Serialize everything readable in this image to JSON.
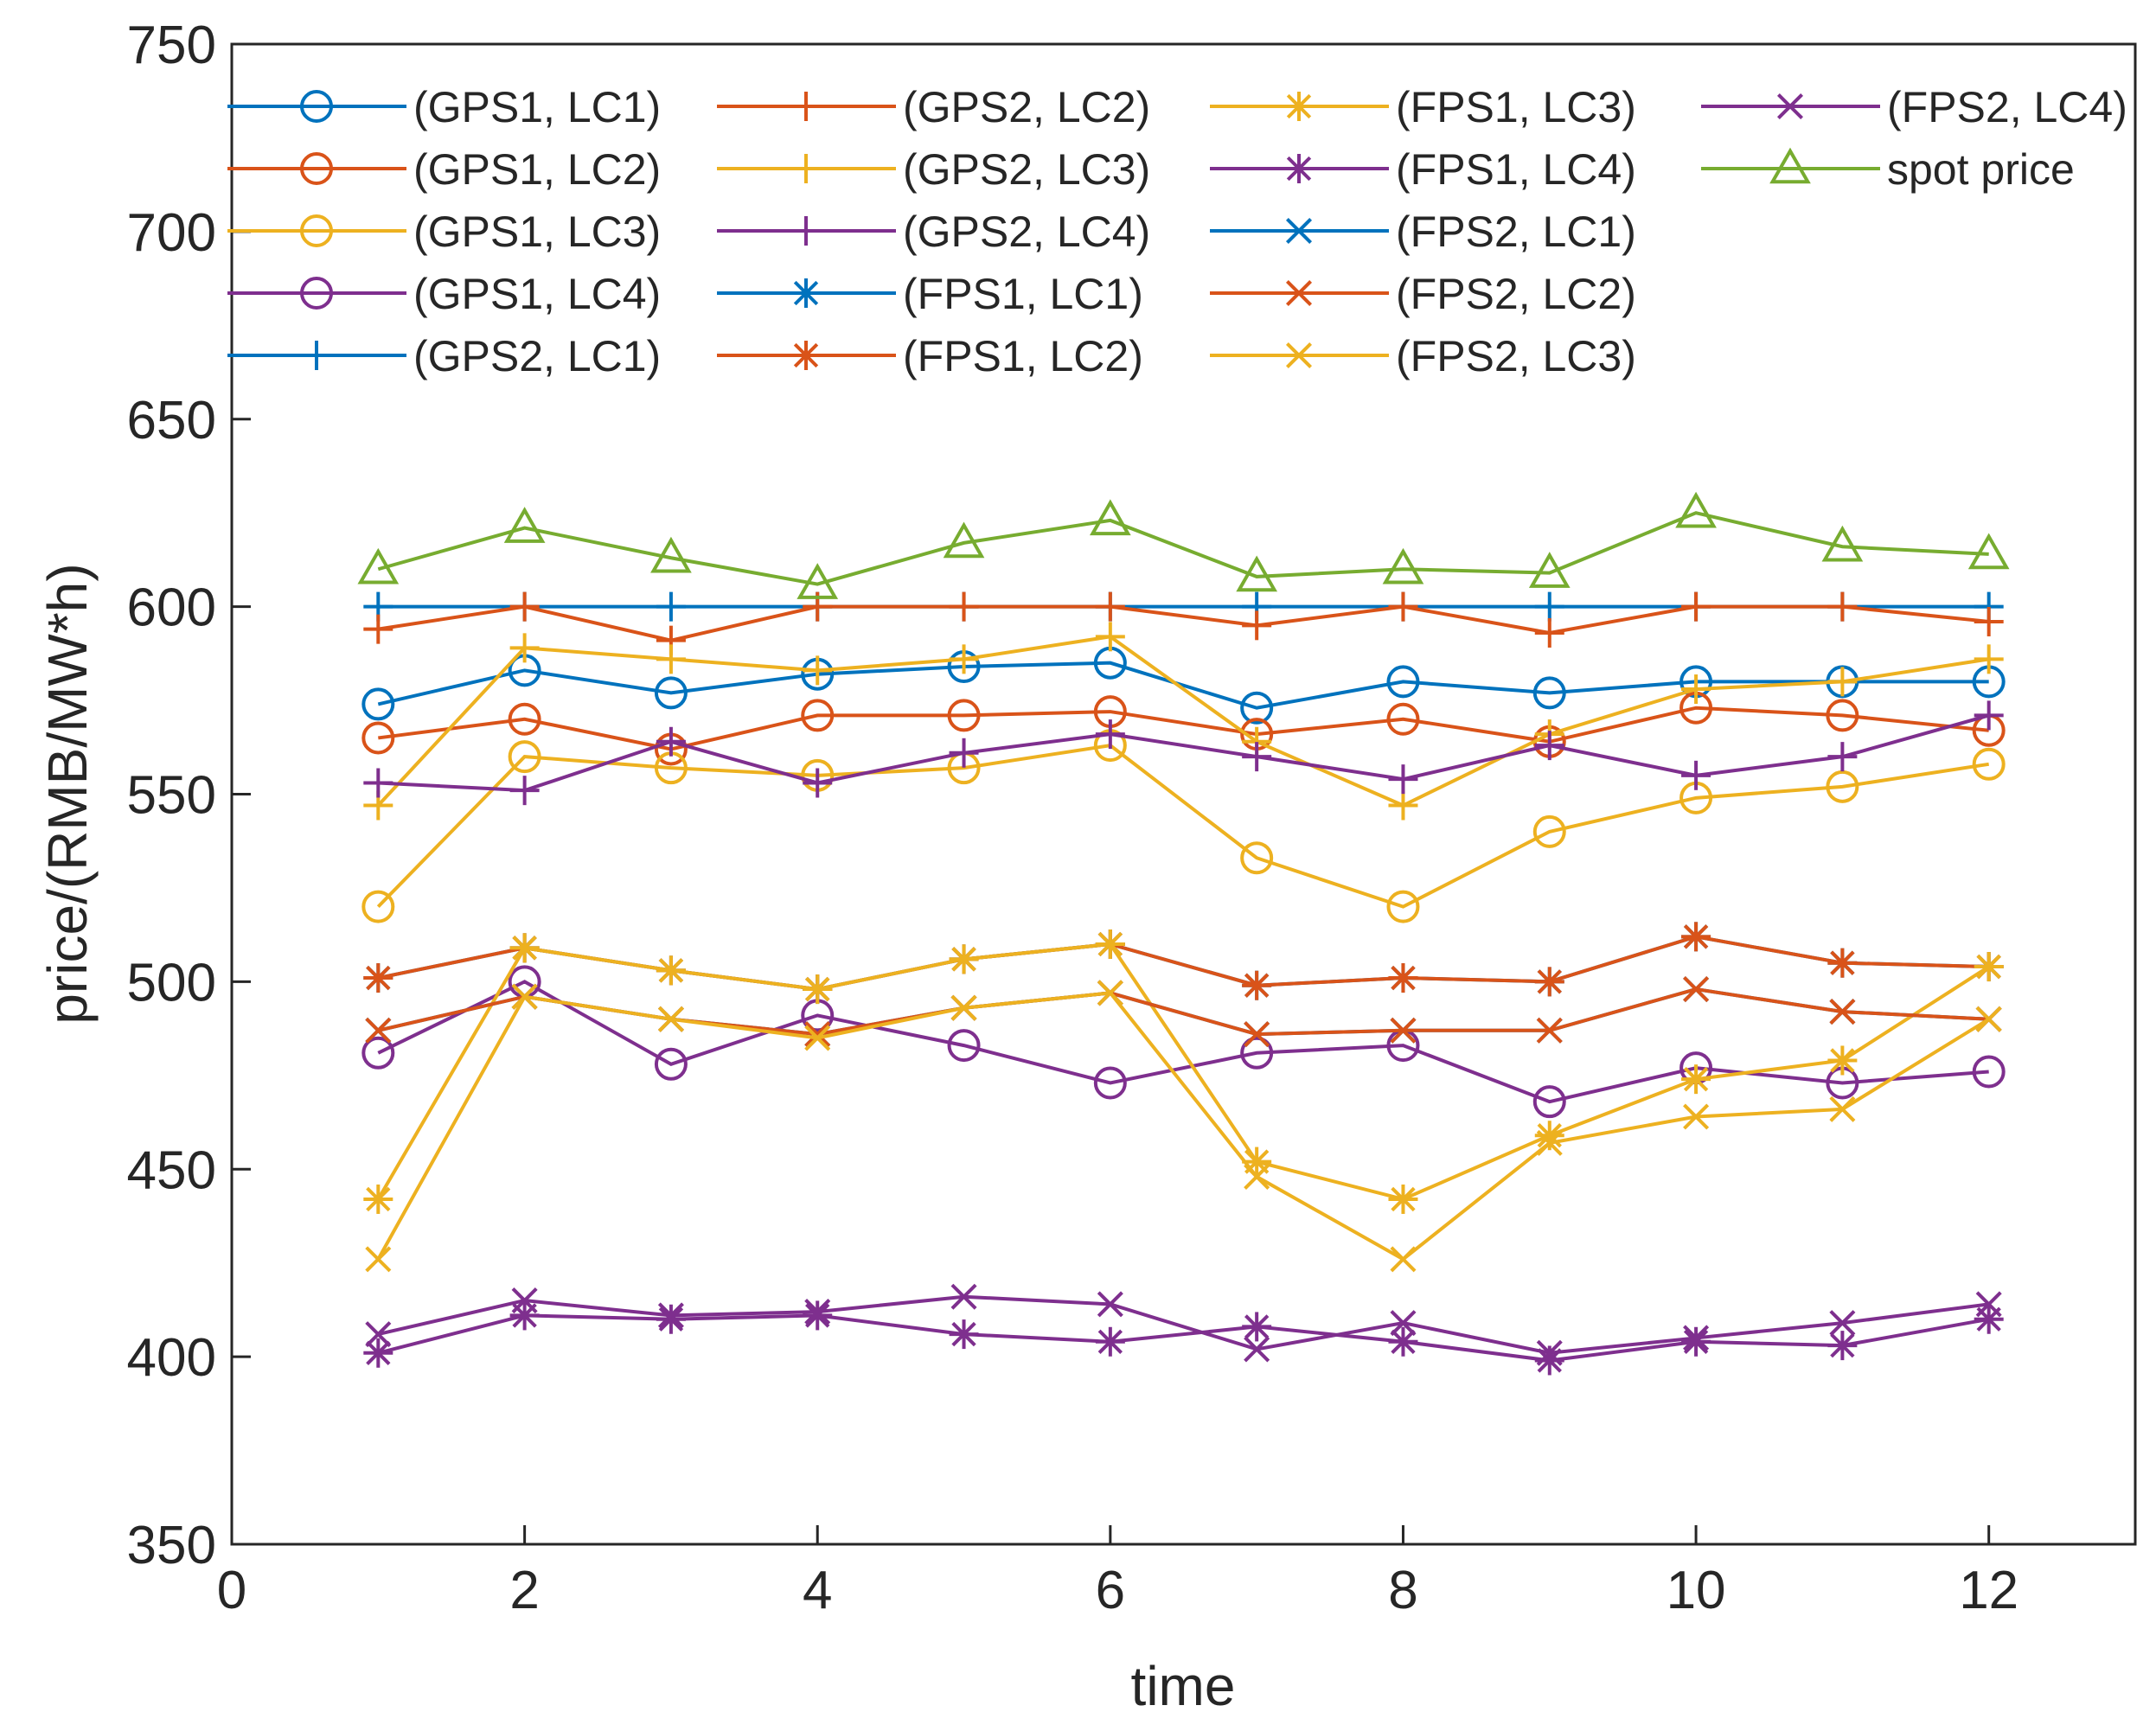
{
  "chart_data": {
    "type": "line",
    "title": "",
    "xlabel": "time",
    "ylabel": "price/(RMB/MW*h)",
    "xlim": [
      0,
      13
    ],
    "ylim": [
      350,
      750
    ],
    "xticks": [
      0,
      2,
      4,
      6,
      8,
      10,
      12
    ],
    "yticks": [
      350,
      400,
      450,
      500,
      550,
      600,
      650,
      700,
      750
    ],
    "grid": false,
    "legend_placement": "top",
    "x": [
      1,
      2,
      3,
      4,
      5,
      6,
      7,
      8,
      9,
      10,
      11,
      12
    ],
    "series": [
      {
        "name": "(GPS1, LC1)",
        "color": "#0072BD",
        "marker": "circle",
        "values": [
          574,
          583,
          577,
          582,
          584,
          585,
          573,
          580,
          577,
          580,
          580,
          580
        ]
      },
      {
        "name": "(GPS1, LC2)",
        "color": "#D95319",
        "marker": "circle",
        "values": [
          565,
          570,
          562,
          571,
          571,
          572,
          566,
          570,
          564,
          573,
          571,
          567
        ]
      },
      {
        "name": "(GPS1, LC3)",
        "color": "#EDB120",
        "marker": "circle",
        "values": [
          520,
          560,
          557,
          555,
          557,
          563,
          533,
          520,
          540,
          549,
          552,
          558
        ]
      },
      {
        "name": "(GPS1, LC4)",
        "color": "#7E2F8E",
        "marker": "circle",
        "values": [
          481,
          500,
          478,
          491,
          483,
          473,
          481,
          483,
          468,
          477,
          473,
          476
        ]
      },
      {
        "name": "(GPS2, LC1)",
        "color": "#0072BD",
        "marker": "plus",
        "values": [
          600,
          600,
          600,
          600,
          600,
          600,
          600,
          600,
          600,
          600,
          600,
          600
        ]
      },
      {
        "name": "(GPS2, LC2)",
        "color": "#D95319",
        "marker": "plus",
        "values": [
          594,
          600,
          591,
          600,
          600,
          600,
          595,
          600,
          593,
          600,
          600,
          596
        ]
      },
      {
        "name": "(GPS2, LC3)",
        "color": "#EDB120",
        "marker": "plus",
        "values": [
          547,
          589,
          586,
          583,
          586,
          592,
          564,
          547,
          566,
          578,
          580,
          586
        ]
      },
      {
        "name": "(GPS2, LC4)",
        "color": "#7E2F8E",
        "marker": "plus",
        "values": [
          553,
          551,
          564,
          553,
          561,
          566,
          560,
          554,
          563,
          555,
          560,
          571
        ]
      },
      {
        "name": "(FPS1, LC1)",
        "color": "#0072BD",
        "marker": "star",
        "values": [
          501,
          509,
          503,
          498,
          506,
          510,
          499,
          501,
          500,
          512,
          505,
          504
        ]
      },
      {
        "name": "(FPS1, LC2)",
        "color": "#D95319",
        "marker": "star",
        "values": [
          501,
          509,
          503,
          498,
          506,
          510,
          499,
          501,
          500,
          512,
          505,
          504
        ]
      },
      {
        "name": "(FPS1, LC3)",
        "color": "#EDB120",
        "marker": "star",
        "values": [
          442,
          509,
          503,
          498,
          506,
          510,
          452,
          442,
          459,
          474,
          479,
          504
        ]
      },
      {
        "name": "(FPS1, LC4)",
        "color": "#7E2F8E",
        "marker": "star",
        "values": [
          401,
          411,
          410,
          411,
          406,
          404,
          408,
          404,
          399,
          404,
          403,
          410
        ]
      },
      {
        "name": "(FPS2, LC1)",
        "color": "#0072BD",
        "marker": "x",
        "values": [
          487,
          496,
          490,
          486,
          493,
          497,
          486,
          487,
          487,
          498,
          492,
          490
        ]
      },
      {
        "name": "(FPS2, LC2)",
        "color": "#D95319",
        "marker": "x",
        "values": [
          487,
          496,
          490,
          486,
          493,
          497,
          486,
          487,
          487,
          498,
          492,
          490
        ]
      },
      {
        "name": "(FPS2, LC3)",
        "color": "#EDB120",
        "marker": "x",
        "values": [
          426,
          496,
          490,
          485,
          493,
          497,
          448,
          426,
          457,
          464,
          466,
          490
        ]
      },
      {
        "name": "(FPS2, LC4)",
        "color": "#7E2F8E",
        "marker": "x",
        "values": [
          406,
          415,
          411,
          412,
          416,
          414,
          402,
          409,
          401,
          405,
          409,
          414
        ]
      },
      {
        "name": "spot price",
        "color": "#77AC30",
        "marker": "triangle",
        "values": [
          610,
          621,
          613,
          606,
          617,
          623,
          608,
          610,
          609,
          625,
          616,
          614
        ]
      }
    ]
  }
}
